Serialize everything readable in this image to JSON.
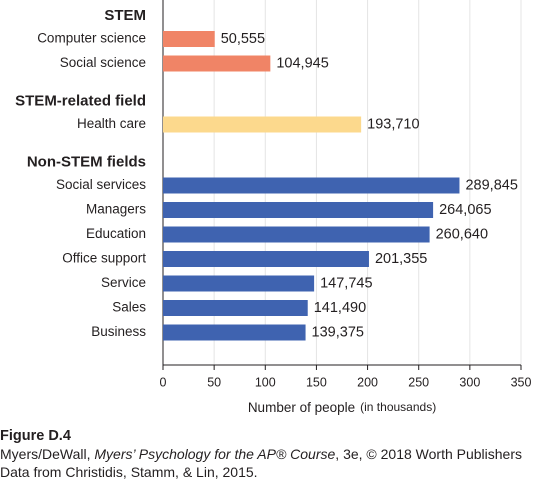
{
  "chart_data": {
    "type": "bar",
    "orientation": "horizontal",
    "groups": [
      {
        "title": "STEM",
        "color": "#f08466",
        "categories": [
          "Computer science",
          "Social science"
        ],
        "values": [
          50.555,
          104.945
        ],
        "value_labels": [
          "50,555",
          "104,945"
        ]
      },
      {
        "title": "STEM-related field",
        "color": "#fcd98d",
        "categories": [
          "Health care"
        ],
        "values": [
          193.71
        ],
        "value_labels": [
          "193,710"
        ]
      },
      {
        "title": "Non-STEM fields",
        "color": "#3f63b0",
        "categories": [
          "Social services",
          "Managers",
          "Education",
          "Office support",
          "Service",
          "Sales",
          "Business"
        ],
        "values": [
          289.845,
          264.065,
          260.64,
          201.355,
          147.745,
          141.49,
          139.375
        ],
        "value_labels": [
          "289,845",
          "264,065",
          "260,640",
          "201,355",
          "147,745",
          "141,490",
          "139,375"
        ]
      }
    ],
    "xlabel": "Number of people",
    "xlabel_unit": "(in thousands)",
    "xlim": [
      0,
      350
    ],
    "xticks": [
      0,
      50,
      100,
      150,
      200,
      250,
      300,
      350
    ],
    "grid": true
  },
  "figure": {
    "number": "Figure D.4",
    "credit": [
      "Myers/DeWall, ",
      "Myers’ Psychology for the AP® Course",
      ", 3e, © 2018 Worth Publishers"
    ],
    "source": "Data from Christidis, Stamm, & Lin, 2015."
  }
}
